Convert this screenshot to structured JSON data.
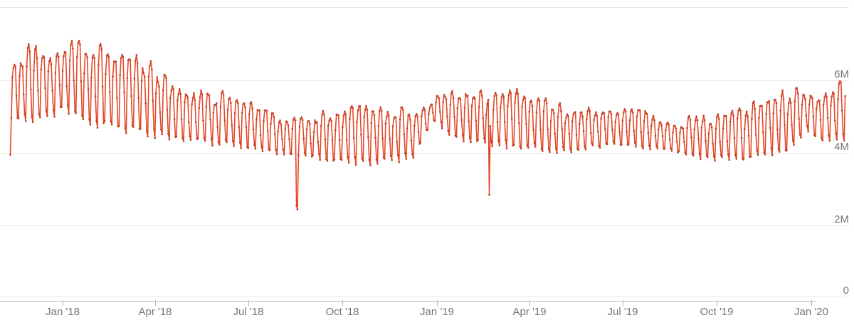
{
  "page": {
    "background": "#ffffff"
  },
  "chart_data": {
    "type": "line",
    "title": "",
    "description": "Daily time-series with weekly seasonality, ~4M-7M range, declining from winter 2017-18 peak, summer troughs, holiday bumps and two outage dips",
    "legend": null,
    "grid": "horizontal-only",
    "line_color": "#e2492a",
    "marker_color": "#bf4026",
    "grid_color": "#e8e8e8",
    "axis_color": "#b7b7b7",
    "label_color": "#757575",
    "x_axis": {
      "tick_labels": [
        "Jan '18",
        "Apr '18",
        "Jul '18",
        "Oct '18",
        "Jan '19",
        "Apr '19",
        "Jul '19",
        "Oct '19",
        "Jan '20"
      ],
      "tick_day_indices": [
        51,
        141,
        232,
        324,
        416,
        506,
        597,
        689,
        781
      ]
    },
    "y_axis": {
      "unit": "M",
      "min": 0,
      "max": 8000000,
      "gridlines": [
        {
          "value": 8,
          "label": ""
        },
        {
          "value": 6,
          "label": "6M"
        },
        {
          "value": 4,
          "label": "4M"
        },
        {
          "value": 2,
          "label": "2M"
        },
        {
          "value": 0,
          "label": "0"
        }
      ]
    },
    "series": [
      {
        "name": "daily values",
        "start_date": "2017-11-11",
        "n_days": 815,
        "values_unit": "millions",
        "weekday_weights": [
          0.02,
          0.74,
          0.96,
          1.0,
          0.93,
          0.45,
          0.08
        ],
        "envelope_keypoints": [
          [
            0,
            6.55,
            4.9
          ],
          [
            20,
            6.75,
            4.9
          ],
          [
            42,
            6.6,
            5.0
          ],
          [
            47,
            6.7,
            5.2
          ],
          [
            58,
            7.05,
            5.0
          ],
          [
            75,
            6.85,
            4.8
          ],
          [
            96,
            6.7,
            4.7
          ],
          [
            114,
            6.75,
            4.6
          ],
          [
            134,
            6.3,
            4.5
          ],
          [
            155,
            5.95,
            4.4
          ],
          [
            175,
            5.7,
            4.35
          ],
          [
            195,
            5.55,
            4.25
          ],
          [
            216,
            5.45,
            4.2
          ],
          [
            232,
            5.25,
            4.1
          ],
          [
            251,
            5.05,
            4.0
          ],
          [
            272,
            4.95,
            3.95
          ],
          [
            294,
            5.0,
            3.85
          ],
          [
            318,
            5.05,
            3.75
          ],
          [
            338,
            5.2,
            3.7
          ],
          [
            355,
            5.3,
            3.7
          ],
          [
            374,
            5.15,
            3.75
          ],
          [
            394,
            5.1,
            3.9
          ],
          [
            407,
            5.2,
            4.6
          ],
          [
            416,
            5.65,
            4.95
          ],
          [
            425,
            5.5,
            4.5
          ],
          [
            447,
            5.5,
            4.3
          ],
          [
            471,
            5.6,
            4.2
          ],
          [
            489,
            5.55,
            4.15
          ],
          [
            510,
            5.35,
            4.1
          ],
          [
            530,
            5.2,
            4.0
          ],
          [
            550,
            5.15,
            4.05
          ],
          [
            571,
            5.1,
            4.15
          ],
          [
            591,
            5.05,
            4.2
          ],
          [
            611,
            5.2,
            4.15
          ],
          [
            632,
            4.9,
            4.1
          ],
          [
            652,
            4.8,
            4.0
          ],
          [
            673,
            4.9,
            3.85
          ],
          [
            693,
            5.0,
            3.8
          ],
          [
            713,
            5.1,
            3.8
          ],
          [
            734,
            5.25,
            3.9
          ],
          [
            754,
            5.5,
            4.0
          ],
          [
            769,
            5.6,
            4.3
          ],
          [
            777,
            5.55,
            4.65
          ],
          [
            788,
            5.6,
            4.35
          ],
          [
            800,
            5.75,
            4.3
          ],
          [
            814,
            5.85,
            4.35
          ]
        ],
        "anomalies": [
          [
            0,
            3.95
          ],
          [
            279,
            2.55
          ],
          [
            280,
            2.45
          ],
          [
            467,
            2.85
          ]
        ]
      }
    ]
  }
}
